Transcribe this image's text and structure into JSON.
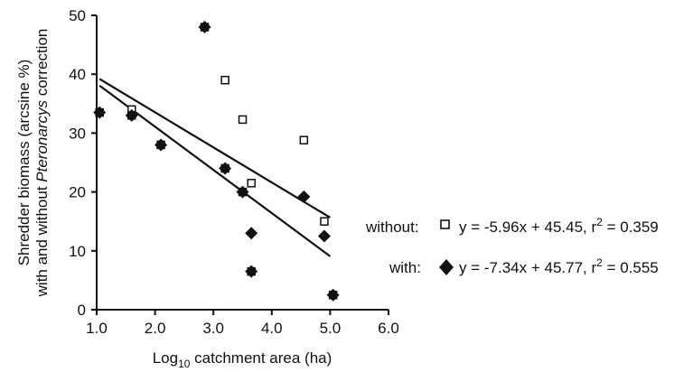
{
  "chart_data": {
    "type": "scatter",
    "xlabel_main": "Log",
    "xlabel_sub": "10",
    "xlabel_rest": " catchment area (ha)",
    "ylabel_line1": "Shredder biomass (arcsine %)",
    "ylabel_line2_a": "with and without ",
    "ylabel_line2_italic": "Pteronarcys",
    "ylabel_line2_b": " correction",
    "xlim": [
      1.0,
      6.0
    ],
    "ylim": [
      0,
      50
    ],
    "x_ticks": [
      "1.0",
      "2.0",
      "3.0",
      "4.0",
      "5.0",
      "6.0"
    ],
    "y_ticks": [
      "0",
      "10",
      "20",
      "30",
      "40",
      "50"
    ],
    "grid": false,
    "series": [
      {
        "name": "without",
        "marker": "open-square",
        "equation": "y = -5.96x + 45.45, r",
        "r2_sup": "2",
        "r2_value": " = 0.359",
        "fit": {
          "slope": -5.96,
          "intercept": 45.45,
          "x_range": [
            1.05,
            5.0
          ]
        },
        "points": [
          {
            "x": 1.05,
            "y": 33.5
          },
          {
            "x": 1.6,
            "y": 34.0
          },
          {
            "x": 1.6,
            "y": 33.0
          },
          {
            "x": 2.1,
            "y": 28.0
          },
          {
            "x": 2.85,
            "y": 48.0
          },
          {
            "x": 3.2,
            "y": 39.0
          },
          {
            "x": 3.2,
            "y": 24.0
          },
          {
            "x": 3.5,
            "y": 32.3
          },
          {
            "x": 3.5,
            "y": 20.0
          },
          {
            "x": 3.65,
            "y": 21.5
          },
          {
            "x": 3.65,
            "y": 6.5
          },
          {
            "x": 4.55,
            "y": 28.8
          },
          {
            "x": 4.9,
            "y": 15.0
          },
          {
            "x": 5.05,
            "y": 2.5
          }
        ]
      },
      {
        "name": "with",
        "marker": "filled-diamond",
        "equation": "y = -7.34x + 45.77, r",
        "r2_sup": "2",
        "r2_value": " = 0.555",
        "fit": {
          "slope": -7.34,
          "intercept": 45.77,
          "x_range": [
            1.05,
            5.0
          ]
        },
        "points": [
          {
            "x": 1.05,
            "y": 33.5
          },
          {
            "x": 1.6,
            "y": 33.0
          },
          {
            "x": 2.1,
            "y": 28.0
          },
          {
            "x": 2.85,
            "y": 48.0
          },
          {
            "x": 3.2,
            "y": 24.0
          },
          {
            "x": 3.5,
            "y": 20.0
          },
          {
            "x": 3.65,
            "y": 13.0
          },
          {
            "x": 3.65,
            "y": 6.5
          },
          {
            "x": 4.55,
            "y": 19.2
          },
          {
            "x": 4.9,
            "y": 12.5
          },
          {
            "x": 5.05,
            "y": 2.5
          }
        ]
      }
    ],
    "legend": {
      "placement": "right",
      "items": [
        {
          "label": "without:",
          "series": 0
        },
        {
          "label": "with:",
          "series": 1
        }
      ]
    }
  }
}
